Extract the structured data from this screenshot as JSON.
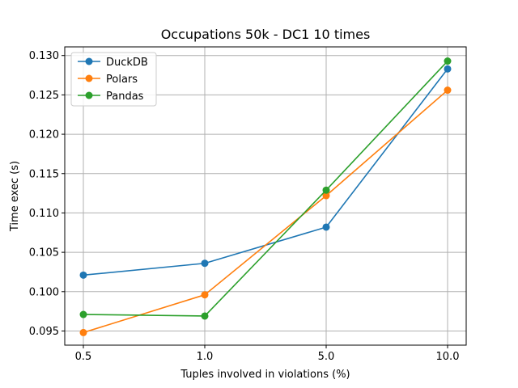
{
  "chart_data": {
    "type": "line",
    "title": "Occupations 50k - DC1 10 times",
    "xlabel": "Tuples involved in violations (%)",
    "ylabel": "Time exec (s)",
    "categories": [
      "0.5",
      "1.0",
      "5.0",
      "10.0"
    ],
    "ylim": [
      0.0932,
      0.1311
    ],
    "yticks": [
      "0.095",
      "0.100",
      "0.105",
      "0.110",
      "0.115",
      "0.120",
      "0.125",
      "0.130"
    ],
    "ytick_values": [
      0.095,
      0.1,
      0.105,
      0.11,
      0.115,
      0.12,
      0.125,
      0.13
    ],
    "grid": true,
    "legend_position": "top-left",
    "series": [
      {
        "name": "DuckDB",
        "color": "#1f77b4",
        "values": [
          0.1021,
          0.1036,
          0.1082,
          0.1283
        ]
      },
      {
        "name": "Polars",
        "color": "#ff7f0e",
        "values": [
          0.0948,
          0.0996,
          0.1122,
          0.1256
        ]
      },
      {
        "name": "Pandas",
        "color": "#2ca02c",
        "values": [
          0.0971,
          0.0969,
          0.1129,
          0.1293
        ]
      }
    ]
  }
}
